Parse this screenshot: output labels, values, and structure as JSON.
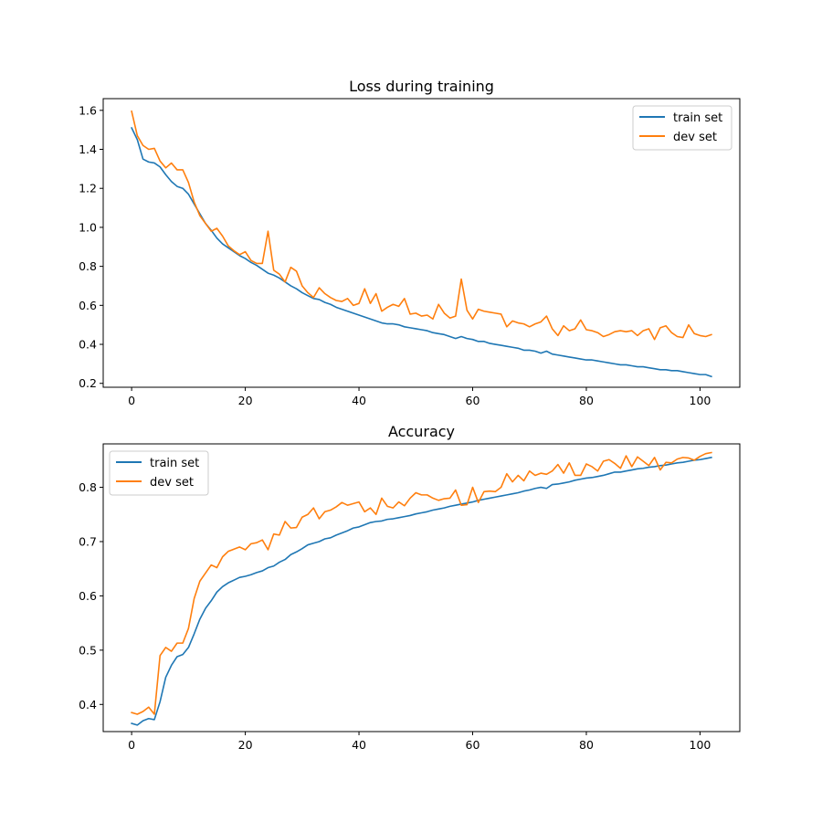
{
  "chart_data": [
    {
      "type": "line",
      "title": "Loss during training",
      "xlabel": "",
      "ylabel": "",
      "xlim": [
        -5,
        107
      ],
      "ylim": [
        0.18,
        1.66
      ],
      "xticks": [
        0,
        20,
        40,
        60,
        80,
        100
      ],
      "yticks": [
        0.2,
        0.4,
        0.6,
        0.8,
        1.0,
        1.2,
        1.4,
        1.6
      ],
      "ytick_labels": [
        "0.2",
        "0.4",
        "0.6",
        "0.8",
        "1.0",
        "1.2",
        "1.4",
        "1.6"
      ],
      "legend_position": "top-right",
      "grid": false,
      "series": [
        {
          "name": "train set",
          "color": "#1f77b4",
          "values": [
            1.51,
            1.45,
            1.35,
            1.335,
            1.33,
            1.31,
            1.27,
            1.235,
            1.21,
            1.2,
            1.17,
            1.12,
            1.07,
            1.02,
            0.985,
            0.945,
            0.915,
            0.895,
            0.875,
            0.855,
            0.84,
            0.82,
            0.805,
            0.785,
            0.765,
            0.755,
            0.74,
            0.72,
            0.7,
            0.685,
            0.665,
            0.65,
            0.635,
            0.63,
            0.615,
            0.605,
            0.59,
            0.58,
            0.57,
            0.56,
            0.55,
            0.54,
            0.53,
            0.52,
            0.51,
            0.505,
            0.505,
            0.5,
            0.49,
            0.485,
            0.48,
            0.475,
            0.47,
            0.46,
            0.455,
            0.45,
            0.44,
            0.43,
            0.44,
            0.43,
            0.425,
            0.415,
            0.415,
            0.405,
            0.4,
            0.395,
            0.39,
            0.385,
            0.38,
            0.37,
            0.37,
            0.365,
            0.355,
            0.365,
            0.35,
            0.345,
            0.34,
            0.335,
            0.33,
            0.325,
            0.32,
            0.32,
            0.315,
            0.31,
            0.305,
            0.3,
            0.295,
            0.295,
            0.29,
            0.285,
            0.285,
            0.28,
            0.275,
            0.27,
            0.27,
            0.265,
            0.265,
            0.26,
            0.255,
            0.25,
            0.245,
            0.245,
            0.235
          ]
        },
        {
          "name": "dev set",
          "color": "#ff7f0e",
          "values": [
            1.595,
            1.47,
            1.42,
            1.4,
            1.405,
            1.34,
            1.305,
            1.33,
            1.295,
            1.295,
            1.23,
            1.13,
            1.06,
            1.02,
            0.98,
            0.995,
            0.955,
            0.905,
            0.88,
            0.86,
            0.875,
            0.83,
            0.815,
            0.815,
            0.98,
            0.78,
            0.76,
            0.72,
            0.795,
            0.775,
            0.7,
            0.665,
            0.64,
            0.69,
            0.66,
            0.64,
            0.625,
            0.62,
            0.635,
            0.6,
            0.61,
            0.685,
            0.61,
            0.66,
            0.57,
            0.59,
            0.605,
            0.595,
            0.635,
            0.555,
            0.56,
            0.545,
            0.55,
            0.53,
            0.605,
            0.56,
            0.535,
            0.545,
            0.735,
            0.575,
            0.53,
            0.58,
            0.57,
            0.565,
            0.56,
            0.555,
            0.49,
            0.52,
            0.51,
            0.505,
            0.49,
            0.505,
            0.515,
            0.545,
            0.48,
            0.445,
            0.495,
            0.47,
            0.48,
            0.525,
            0.475,
            0.47,
            0.46,
            0.44,
            0.45,
            0.465,
            0.47,
            0.465,
            0.47,
            0.445,
            0.47,
            0.48,
            0.425,
            0.485,
            0.495,
            0.46,
            0.44,
            0.435,
            0.5,
            0.455,
            0.445,
            0.44,
            0.45
          ]
        }
      ]
    },
    {
      "type": "line",
      "title": "Accuracy",
      "xlabel": "",
      "ylabel": "",
      "xlim": [
        -5,
        107
      ],
      "ylim": [
        0.35,
        0.88
      ],
      "xticks": [
        0,
        20,
        40,
        60,
        80,
        100
      ],
      "yticks": [
        0.4,
        0.5,
        0.6,
        0.7,
        0.8
      ],
      "ytick_labels": [
        "0.4",
        "0.5",
        "0.6",
        "0.7",
        "0.8"
      ],
      "legend_position": "top-left",
      "grid": false,
      "series": [
        {
          "name": "train set",
          "color": "#1f77b4",
          "values": [
            0.365,
            0.362,
            0.37,
            0.374,
            0.372,
            0.405,
            0.45,
            0.472,
            0.488,
            0.492,
            0.505,
            0.53,
            0.557,
            0.577,
            0.591,
            0.607,
            0.617,
            0.624,
            0.629,
            0.634,
            0.636,
            0.639,
            0.643,
            0.646,
            0.652,
            0.655,
            0.662,
            0.667,
            0.676,
            0.681,
            0.687,
            0.694,
            0.697,
            0.7,
            0.705,
            0.707,
            0.712,
            0.716,
            0.72,
            0.725,
            0.727,
            0.731,
            0.735,
            0.737,
            0.738,
            0.741,
            0.742,
            0.744,
            0.746,
            0.748,
            0.751,
            0.753,
            0.755,
            0.758,
            0.76,
            0.762,
            0.765,
            0.767,
            0.769,
            0.771,
            0.773,
            0.776,
            0.778,
            0.78,
            0.782,
            0.784,
            0.786,
            0.788,
            0.79,
            0.793,
            0.795,
            0.798,
            0.8,
            0.798,
            0.805,
            0.806,
            0.808,
            0.81,
            0.813,
            0.815,
            0.817,
            0.818,
            0.82,
            0.822,
            0.825,
            0.828,
            0.828,
            0.83,
            0.832,
            0.834,
            0.835,
            0.837,
            0.838,
            0.84,
            0.841,
            0.843,
            0.845,
            0.846,
            0.848,
            0.85,
            0.851,
            0.853,
            0.855
          ]
        },
        {
          "name": "dev set",
          "color": "#ff7f0e",
          "values": [
            0.385,
            0.382,
            0.387,
            0.395,
            0.382,
            0.49,
            0.505,
            0.498,
            0.513,
            0.513,
            0.54,
            0.595,
            0.627,
            0.642,
            0.657,
            0.652,
            0.672,
            0.682,
            0.686,
            0.69,
            0.685,
            0.696,
            0.698,
            0.703,
            0.685,
            0.714,
            0.712,
            0.737,
            0.725,
            0.726,
            0.745,
            0.75,
            0.762,
            0.742,
            0.755,
            0.758,
            0.764,
            0.772,
            0.767,
            0.77,
            0.773,
            0.755,
            0.762,
            0.75,
            0.78,
            0.765,
            0.762,
            0.773,
            0.766,
            0.78,
            0.79,
            0.786,
            0.786,
            0.78,
            0.776,
            0.779,
            0.78,
            0.795,
            0.767,
            0.768,
            0.8,
            0.772,
            0.792,
            0.793,
            0.792,
            0.8,
            0.825,
            0.81,
            0.822,
            0.812,
            0.83,
            0.822,
            0.826,
            0.824,
            0.83,
            0.842,
            0.826,
            0.845,
            0.822,
            0.822,
            0.843,
            0.838,
            0.83,
            0.848,
            0.851,
            0.844,
            0.835,
            0.858,
            0.838,
            0.856,
            0.848,
            0.84,
            0.855,
            0.832,
            0.846,
            0.845,
            0.852,
            0.855,
            0.854,
            0.85,
            0.857,
            0.862,
            0.864
          ]
        }
      ]
    }
  ]
}
